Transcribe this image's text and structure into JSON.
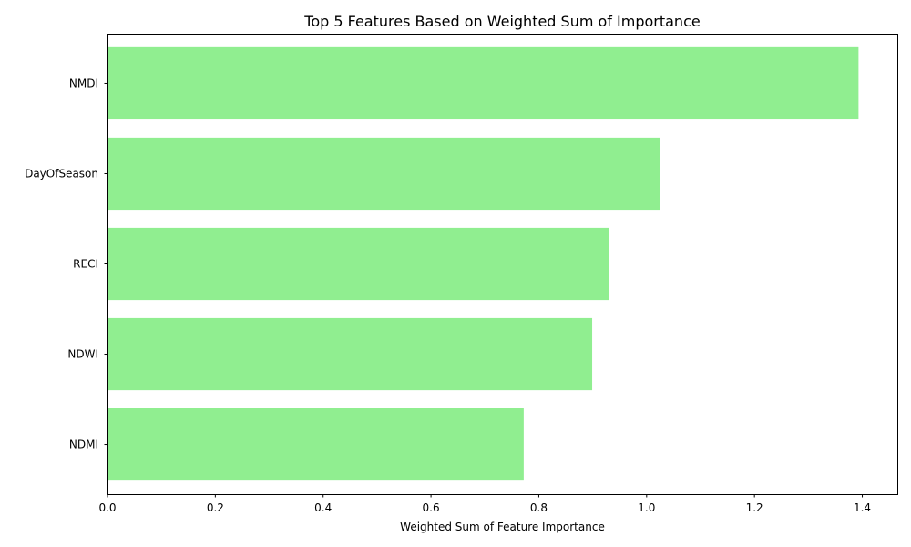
{
  "chart_data": {
    "type": "bar",
    "orientation": "horizontal",
    "title": "Top 5 Features Based on Weighted Sum of Importance",
    "xlabel": "Weighted Sum of Feature Importance",
    "ylabel": "",
    "categories": [
      "NMDI",
      "DayOfSeason",
      "RECI",
      "NDWI",
      "NDMI"
    ],
    "values": [
      1.393,
      1.024,
      0.93,
      0.899,
      0.772
    ],
    "xlim": [
      0,
      1.465
    ],
    "xticks": [
      0.0,
      0.2,
      0.4,
      0.6,
      0.8,
      1.0,
      1.2,
      1.4
    ],
    "xtick_labels": [
      "0.0",
      "0.2",
      "0.4",
      "0.6",
      "0.8",
      "1.0",
      "1.2",
      "1.4"
    ],
    "bar_color": "#90ee90",
    "grid": false,
    "legend": "none"
  }
}
